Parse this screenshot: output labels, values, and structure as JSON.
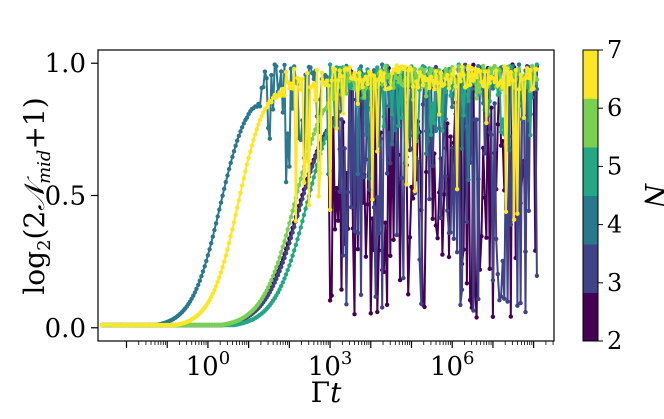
{
  "chart_data": {
    "type": "line",
    "title": "",
    "xlabel": "Γt",
    "ylabel": "log₂(2𝒩mid+1)",
    "xscale": "log",
    "xlim_log10": [
      -2.7,
      8.5
    ],
    "ylim": [
      -0.05,
      1.05
    ],
    "x_ticks": [
      {
        "exp": 0,
        "base": "10",
        "sup": "0"
      },
      {
        "exp": 3,
        "base": "10",
        "sup": "3"
      },
      {
        "exp": 6,
        "base": "10",
        "sup": "6"
      }
    ],
    "y_ticks": [
      {
        "value": 0.0,
        "label": "0.0"
      },
      {
        "value": 0.5,
        "label": "0.5"
      },
      {
        "value": 1.0,
        "label": "1.0"
      }
    ],
    "grid": false,
    "colorbar": {
      "label": "N",
      "ticks": [
        "2",
        "3",
        "4",
        "5",
        "6",
        "7"
      ],
      "colors": [
        "#440154",
        "#404387",
        "#2a788e",
        "#22a884",
        "#7ad151",
        "#fde725"
      ]
    },
    "series": [
      {
        "N": 2,
        "color": "#440154",
        "rise_center_log10": 2.2,
        "rise_width": 0.42,
        "onset_log10": 3.0,
        "plateau": 0.88,
        "noise": 0.85,
        "min_y": 0.02,
        "seed": 11
      },
      {
        "N": 3,
        "color": "#404387",
        "rise_center_log10": 2.25,
        "rise_width": 0.42,
        "onset_log10": 3.2,
        "plateau": 0.9,
        "noise": 0.75,
        "min_y": 0.05,
        "seed": 23
      },
      {
        "N": 4,
        "color": "#2a788e",
        "rise_center_log10": 0.3,
        "rise_width": 0.35,
        "onset_log10": 1.3,
        "plateau": 0.92,
        "noise": 0.45,
        "min_y": 0.55,
        "seed": 37
      },
      {
        "N": 5,
        "color": "#22a884",
        "rise_center_log10": 2.45,
        "rise_width": 0.4,
        "onset_log10": 3.0,
        "plateau": 0.96,
        "noise": 0.3,
        "min_y": 0.7,
        "seed": 41
      },
      {
        "N": 6,
        "color": "#7ad151",
        "rise_center_log10": 2.15,
        "rise_width": 0.4,
        "onset_log10": 3.1,
        "plateau": 0.97,
        "noise": 0.12,
        "min_y": 0.85,
        "seed": 53
      },
      {
        "N": 7,
        "color": "#fde725",
        "rise_center_log10": 0.75,
        "rise_width": 0.34,
        "onset_log10": 1.9,
        "plateau": 0.95,
        "noise": 0.18,
        "min_y": 0.4,
        "seed": 67
      }
    ]
  }
}
